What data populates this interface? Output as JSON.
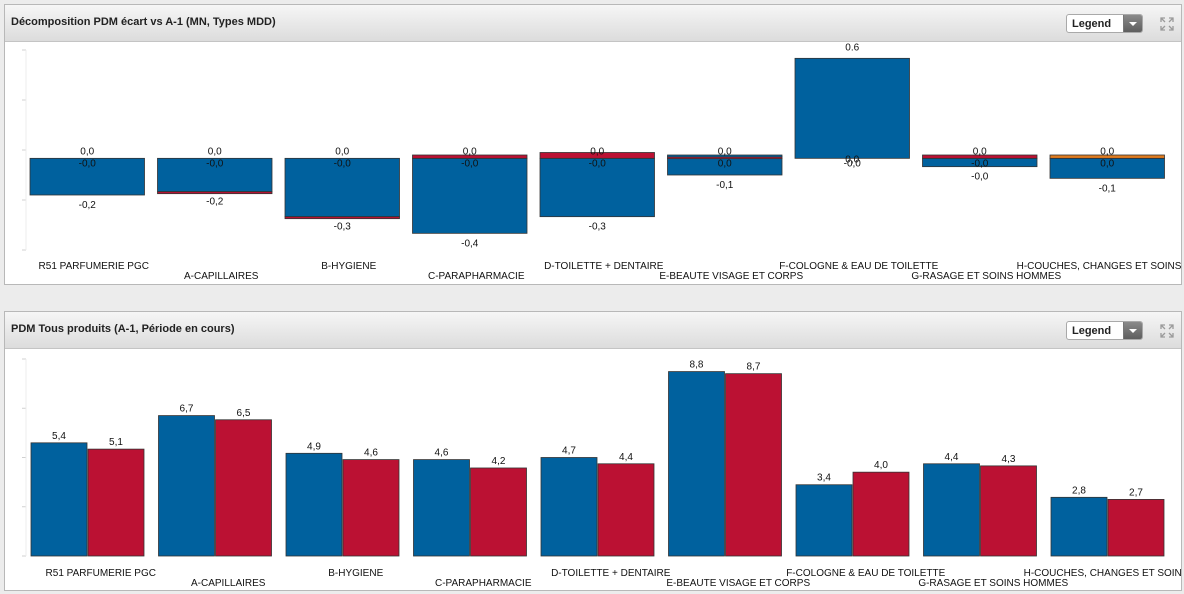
{
  "panels": [
    {
      "title": "Décomposition PDM écart vs A-1 (MN, Types MDD)",
      "legend_label": "Legend",
      "expand_icon": "expand-arrows-icon",
      "chart_data": {
        "type": "bar",
        "stacked": true,
        "categories": [
          "R51 PARFUMERIE PGC",
          "A-CAPILLAIRES",
          "B-HYGIENE",
          "C-PARAPHARMACIE",
          "D-TOILETTE + DENTAIRE",
          "E-BEAUTE VISAGE ET CORPS",
          "F-COLOGNE & EAU DE TOILETTE",
          "G-RASAGE ET SOINS HOMMES",
          "H-COUCHES, CHANGES ET SOINS BEBE"
        ],
        "series": [
          {
            "color": "#00619e",
            "values": [
              -0.22,
              -0.2,
              -0.35,
              -0.45,
              -0.35,
              -0.1,
              0.6,
              -0.05,
              -0.12
            ],
            "labels": [
              "-0,2",
              "-0,2",
              "-0,3",
              "-0,4",
              "-0,3",
              "-0,1",
              "0.6",
              "-0,0",
              "-0,1"
            ]
          },
          {
            "color": "#bb1133",
            "values": [
              0.0,
              -0.006,
              -0.006,
              0.02,
              0.035,
              0.01,
              0.0,
              0.02,
              0.0
            ],
            "labels": [
              "0,0",
              "0,0",
              "0,0",
              "0,0",
              "0,0",
              "0,0",
              "0,0",
              "0,0",
              "0,0"
            ]
          },
          {
            "color": "#00619e",
            "values": [
              0.0,
              0.0,
              0.0,
              0.0,
              0.0,
              0.01,
              0.0,
              0.0,
              0.0
            ],
            "labels": [
              "-0,0",
              "-0,0",
              "-0,0",
              "-0,0",
              "-0,0",
              "0,0",
              "-0,0",
              "-0,0",
              "0,0"
            ]
          },
          {
            "color": "#e07b1f",
            "values": [
              0.0,
              0.0,
              0.0,
              0.0,
              0.0,
              0.0,
              0.0,
              0.0,
              0.02
            ],
            "labels": [
              "",
              "",
              "",
              "",
              "",
              "",
              "",
              "",
              ""
            ]
          }
        ],
        "ylim": [
          -0.55,
          0.65
        ],
        "grid": false,
        "legend": "hidden"
      }
    },
    {
      "title": "PDM Tous produits (A-1, Période en cours)",
      "legend_label": "Legend",
      "expand_icon": "expand-arrows-icon",
      "chart_data": {
        "type": "bar",
        "stacked": false,
        "categories": [
          "R51 PARFUMERIE PGC",
          "A-CAPILLAIRES",
          "B-HYGIENE",
          "C-PARAPHARMACIE",
          "D-TOILETTE + DENTAIRE",
          "E-BEAUTE VISAGE ET CORPS",
          "F-COLOGNE & EAU DE TOILETTE",
          "G-RASAGE ET SOINS HOMMES",
          "H-COUCHES, CHANGES ET SOINS BEBE"
        ],
        "series": [
          {
            "color": "#00619e",
            "values": [
              5.4,
              6.7,
              4.9,
              4.6,
              4.7,
              8.8,
              3.4,
              4.4,
              2.8
            ],
            "labels": [
              "5,4",
              "6,7",
              "4,9",
              "4,6",
              "4,7",
              "8,8",
              "3,4",
              "4,4",
              "2,8"
            ]
          },
          {
            "color": "#bb1133",
            "values": [
              5.1,
              6.5,
              4.6,
              4.2,
              4.4,
              8.7,
              4.0,
              4.3,
              2.7
            ],
            "labels": [
              "5,1",
              "6,5",
              "4,6",
              "4,2",
              "4,4",
              "8,7",
              "4,0",
              "4,3",
              "2,7"
            ]
          }
        ],
        "ylim": [
          0,
          9.4
        ],
        "grid": false,
        "legend": "hidden"
      }
    }
  ]
}
